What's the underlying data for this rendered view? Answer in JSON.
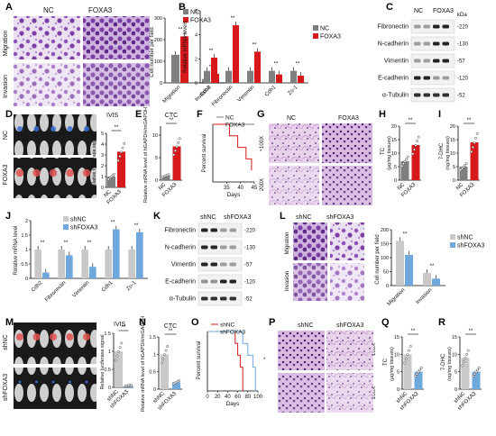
{
  "panel_letters": [
    "A",
    "B",
    "C",
    "D",
    "E",
    "F",
    "G",
    "H",
    "I",
    "J",
    "K",
    "L",
    "M",
    "N",
    "O",
    "P",
    "Q",
    "R"
  ],
  "groups": {
    "nc": "NC",
    "foxa3": "FOXA3",
    "shnc": "shNC",
    "shfoxa3": "shFOXA3"
  },
  "colors": {
    "nc": "#7f7f7f",
    "foxa3": "#d7191c",
    "shnc": "#c9c9c9",
    "shfoxa3": "#6fa8dc",
    "stain": "#8c4fb8"
  },
  "labels": {
    "migration": "Migration",
    "invasion": "Invasion",
    "ivis": "IVIS",
    "ctc": "CTC",
    "kda": "kDa",
    "mag100": "100X",
    "mag200": "200X",
    "sig": "**",
    "sig1": "*",
    "cell_number": "Cell number per field",
    "rel_mrna": "Relative mRNA levels",
    "rel_mrna_j": "Relative mRNA level",
    "rel_luc": "Relative luciferase signal",
    "ctc_ylabel": "Relative mRNA level of hGAPDH/mGAPDH",
    "percent_survival": "Percent survival",
    "days": "Days",
    "tc": "TC",
    "tc_unit": "(μg/mg tissues)",
    "dhc": "7-DHC",
    "dhc_unit": "(ng/mg tissues)"
  },
  "blots": {
    "c_rows": [
      {
        "name": "Fibronectin",
        "kda": "220"
      },
      {
        "name": "N-cadherin",
        "kda": "130"
      },
      {
        "name": "Vimentin",
        "kda": "57"
      },
      {
        "name": "E-cadherin",
        "kda": "120"
      },
      {
        "name": "α-Tubulin",
        "kda": "52"
      }
    ],
    "k_rows": [
      {
        "name": "Fibronectin",
        "kda": "220"
      },
      {
        "name": "N-cadherin",
        "kda": "130"
      },
      {
        "name": "Vimentin",
        "kda": "57"
      },
      {
        "name": "E-cadherin",
        "kda": "120"
      },
      {
        "name": "α-Tubulin",
        "kda": "52"
      }
    ]
  },
  "chart_data": [
    {
      "panel": "A",
      "type": "bar",
      "categories": [
        "Migration",
        "Invasion"
      ],
      "ylabel": "Cell number per field",
      "ylim": [
        0,
        300
      ],
      "yticks": [
        0,
        100,
        200,
        300
      ],
      "series": [
        {
          "name": "NC",
          "values": [
            130,
            18
          ]
        },
        {
          "name": "FOXA3",
          "values": [
            215,
            42
          ]
        }
      ]
    },
    {
      "panel": "B",
      "type": "bar",
      "categories": [
        "Cdh2",
        "Fibronectin",
        "Vimentin",
        "Cdh1",
        "Zo-1"
      ],
      "ylabel": "Relative mRNA levels",
      "ylim": [
        0,
        6
      ],
      "yticks": [
        0,
        2,
        4,
        6
      ],
      "series": [
        {
          "name": "NC",
          "values": [
            1.0,
            1.0,
            1.0,
            1.0,
            1.0
          ]
        },
        {
          "name": "FOXA3",
          "values": [
            2.1,
            4.8,
            2.6,
            0.7,
            0.6
          ]
        }
      ]
    },
    {
      "panel": "D",
      "type": "bar",
      "categories": [
        "NC",
        "FOXA3"
      ],
      "ylabel": "Relative luciferase signal",
      "ylim": [
        0,
        5
      ],
      "yticks": [
        0,
        1,
        2,
        3,
        4,
        5
      ],
      "values": [
        1.0,
        3.3
      ]
    },
    {
      "panel": "E",
      "type": "bar",
      "categories": [
        "NC",
        "FOXA3"
      ],
      "ylabel": "Relative mRNA level of hGAPDH/mGAPDH",
      "ylim": [
        0,
        12
      ],
      "yticks": [
        0,
        5,
        10
      ],
      "values": [
        1.0,
        7.5
      ]
    },
    {
      "panel": "F",
      "type": "line",
      "xlabel": "Days",
      "ylabel": "Percent survival",
      "xlim": [
        30,
        45
      ],
      "xticks": [
        35,
        40,
        45
      ],
      "ylim": [
        0,
        100
      ],
      "series": [
        {
          "name": "NC",
          "x": [
            30,
            45
          ],
          "y": [
            100,
            100
          ]
        },
        {
          "name": "FOXA3",
          "x": [
            30,
            36,
            36,
            39,
            39,
            42,
            42,
            44,
            44
          ],
          "y": [
            100,
            100,
            80,
            80,
            60,
            60,
            40,
            40,
            20
          ]
        }
      ]
    },
    {
      "panel": "H",
      "type": "bar",
      "categories": [
        "NC",
        "FOXA3"
      ],
      "ylabel": "TC (μg/mg tissues)",
      "ylim": [
        0,
        20
      ],
      "yticks": [
        0,
        5,
        10,
        15,
        20
      ],
      "values": [
        7,
        13
      ]
    },
    {
      "panel": "I",
      "type": "bar",
      "categories": [
        "NC",
        "FOXA3"
      ],
      "ylabel": "7-DHC (ng/mg tissues)",
      "ylim": [
        0,
        20
      ],
      "yticks": [
        0,
        5,
        10,
        15,
        20
      ],
      "values": [
        5,
        14
      ]
    },
    {
      "panel": "J",
      "type": "bar",
      "categories": [
        "Cdh2",
        "Fibronectin",
        "Vimentin",
        "Cdh1",
        "Zo-1"
      ],
      "ylabel": "Relative mRNA level",
      "ylim": [
        0,
        2
      ],
      "yticks": [
        0.0,
        0.5,
        1.0,
        1.5,
        2.0
      ],
      "series": [
        {
          "name": "shNC",
          "values": [
            1.0,
            1.0,
            1.0,
            1.0,
            1.0
          ]
        },
        {
          "name": "shFOXA3",
          "values": [
            0.2,
            0.8,
            0.4,
            1.7,
            1.6
          ]
        }
      ]
    },
    {
      "panel": "L",
      "type": "bar",
      "categories": [
        "Migration",
        "Invasion"
      ],
      "ylabel": "Cell number per field",
      "ylim": [
        0,
        200
      ],
      "yticks": [
        0,
        50,
        100,
        150,
        200
      ],
      "series": [
        {
          "name": "shNC",
          "values": [
            160,
            45
          ]
        },
        {
          "name": "shFOXA3",
          "values": [
            110,
            25
          ]
        }
      ]
    },
    {
      "panel": "M",
      "type": "bar",
      "categories": [
        "shNC",
        "shFOXA3"
      ],
      "ylabel": "Relative luciferase signal",
      "ylim": [
        0,
        1.5
      ],
      "yticks": [
        0.0,
        0.5,
        1.0,
        1.5
      ],
      "values": [
        1.0,
        0.05
      ]
    },
    {
      "panel": "N",
      "type": "bar",
      "categories": [
        "shNC",
        "shFOXA3"
      ],
      "ylabel": "Relative mRNA level of hGAPDH/mGAPDH",
      "ylim": [
        0,
        1.5
      ],
      "yticks": [
        0.0,
        0.5,
        1.0,
        1.5
      ],
      "values": [
        1.0,
        0.2
      ]
    },
    {
      "panel": "O",
      "type": "line",
      "xlabel": "Days",
      "ylabel": "Percent survival",
      "xlim": [
        0,
        100
      ],
      "xticks": [
        0,
        20,
        40,
        60,
        80,
        100
      ],
      "ylim": [
        0,
        100
      ],
      "series": [
        {
          "name": "shNC",
          "x": [
            0,
            55,
            55,
            60,
            60,
            65,
            65,
            70,
            70
          ],
          "y": [
            100,
            100,
            80,
            80,
            60,
            60,
            40,
            40,
            0
          ]
        },
        {
          "name": "shFOXA3",
          "x": [
            0,
            70,
            70,
            80,
            80,
            90,
            90,
            95,
            95
          ],
          "y": [
            100,
            100,
            80,
            80,
            60,
            60,
            40,
            40,
            0
          ]
        }
      ]
    },
    {
      "panel": "Q",
      "type": "bar",
      "categories": [
        "shNC",
        "shFOXA3"
      ],
      "ylabel": "TC (μg/mg tissues)",
      "ylim": [
        0,
        15
      ],
      "yticks": [
        0,
        5,
        10,
        15
      ],
      "values": [
        10,
        5
      ]
    },
    {
      "panel": "R",
      "type": "bar",
      "categories": [
        "shNC",
        "shFOXA3"
      ],
      "ylabel": "7-DHC (ng/mg tissues)",
      "ylim": [
        0,
        15
      ],
      "yticks": [
        0,
        5,
        10,
        15
      ],
      "values": [
        9,
        5
      ]
    }
  ]
}
